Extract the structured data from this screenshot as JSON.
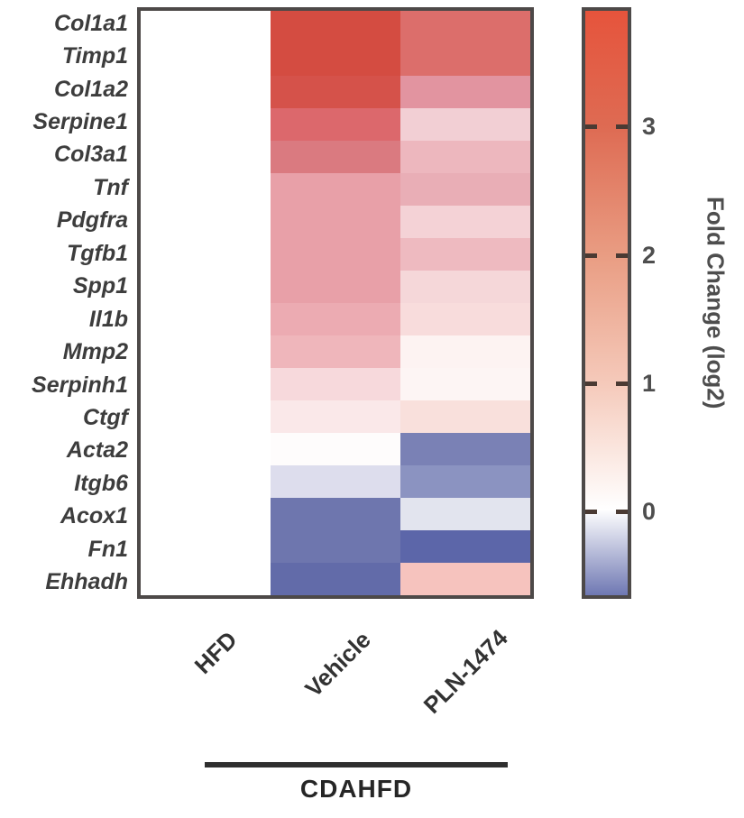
{
  "chart_data": {
    "type": "heatmap",
    "rows": [
      "Col1a1",
      "Timp1",
      "Col1a2",
      "Serpine1",
      "Col3a1",
      "Tnf",
      "Pdgfra",
      "Tgfb1",
      "Spp1",
      "Il1b",
      "Mmp2",
      "Serpinh1",
      "Ctgf",
      "Acta2",
      "Itgb6",
      "Acox1",
      "Fn1",
      "Ehhadh"
    ],
    "columns": [
      "HFD",
      "Vehicle",
      "PLN-1474"
    ],
    "values": [
      [
        0,
        3.6,
        2.9
      ],
      [
        0,
        3.6,
        2.9
      ],
      [
        0,
        3.5,
        2.1
      ],
      [
        0,
        3.1,
        1.0
      ],
      [
        0,
        2.7,
        1.5
      ],
      [
        0,
        1.9,
        1.6
      ],
      [
        0,
        1.9,
        1.0
      ],
      [
        0,
        1.9,
        1.4
      ],
      [
        0,
        1.9,
        0.9
      ],
      [
        0,
        1.8,
        0.8
      ],
      [
        0,
        1.7,
        0.3
      ],
      [
        0,
        0.9,
        0.25
      ],
      [
        0,
        0.6,
        0.7
      ],
      [
        0,
        0.05,
        -0.5
      ],
      [
        0,
        -0.15,
        -0.45
      ],
      [
        0,
        -0.55,
        -0.1
      ],
      [
        0,
        -0.55,
        -0.6
      ],
      [
        0,
        -0.6,
        1.0
      ]
    ],
    "cell_colors": [
      [
        "#ffffff",
        "#d44c41",
        "#dc6e6b"
      ],
      [
        "#ffffff",
        "#d44c41",
        "#dc6e6b"
      ],
      [
        "#ffffff",
        "#d5524a",
        "#e294a0"
      ],
      [
        "#ffffff",
        "#dc686c",
        "#f2cfd4"
      ],
      [
        "#ffffff",
        "#da7a80",
        "#edb7be"
      ],
      [
        "#ffffff",
        "#e8a0a8",
        "#e9aeb6"
      ],
      [
        "#ffffff",
        "#e8a0a8",
        "#f4d2d6"
      ],
      [
        "#ffffff",
        "#e8a0a8",
        "#eebac0"
      ],
      [
        "#ffffff",
        "#e8a0a8",
        "#f5d7d9"
      ],
      [
        "#ffffff",
        "#ecabb2",
        "#f8dcdc"
      ],
      [
        "#ffffff",
        "#efb6bb",
        "#fdf3f2"
      ],
      [
        "#ffffff",
        "#f7d9dc",
        "#fdf5f4"
      ],
      [
        "#ffffff",
        "#fae8e9",
        "#f9e0dc"
      ],
      [
        "#ffffff",
        "#fefcfc",
        "#7a81b5"
      ],
      [
        "#ffffff",
        "#dddded",
        "#8b93c1"
      ],
      [
        "#ffffff",
        "#6e76ae",
        "#e2e4ee"
      ],
      [
        "#ffffff",
        "#6e76ae",
        "#5c66a9"
      ],
      [
        "#ffffff",
        "#626ba9",
        "#f6c3be"
      ]
    ],
    "colorbar": {
      "label": "Fold Change (log2)",
      "ticks": [
        3,
        2,
        1,
        0
      ],
      "range_min": -0.65,
      "range_max": 3.9,
      "gradient": [
        {
          "pos": 0.0,
          "color": "#e6543c"
        },
        {
          "pos": 0.2,
          "color": "#de6b53"
        },
        {
          "pos": 0.42,
          "color": "#e99d83"
        },
        {
          "pos": 0.64,
          "color": "#f5cabb"
        },
        {
          "pos": 0.853,
          "color": "#ffffff"
        },
        {
          "pos": 1.0,
          "color": "#6f78b3"
        }
      ]
    },
    "group": {
      "label": "CDAHFD",
      "columns": [
        "Vehicle",
        "PLN-1474"
      ]
    },
    "legend_position": "right",
    "grid": false
  }
}
